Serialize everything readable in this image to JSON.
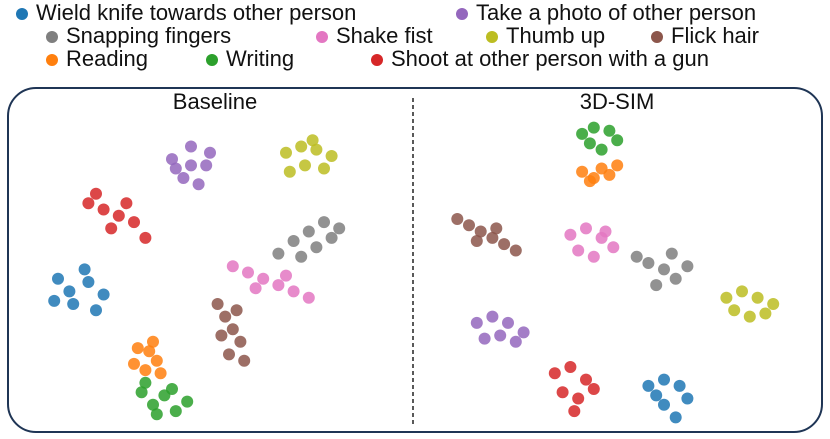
{
  "chart_data": [
    {
      "type": "scatter",
      "title": "Baseline",
      "xlim": [
        0,
        100
      ],
      "ylim": [
        0,
        100
      ],
      "series": [
        {
          "name": "Wield knife towards other person",
          "color": "#1f77b4",
          "x": [
            10,
            14,
            18,
            20,
            13,
            17,
            22,
            9
          ],
          "y": [
            48,
            40,
            47,
            38,
            44,
            51,
            43,
            41
          ]
        },
        {
          "name": "Take a photo of other person",
          "color": "#9467bd",
          "x": [
            40,
            45,
            49,
            43,
            47,
            41,
            50,
            45
          ],
          "y": [
            86,
            90,
            84,
            80,
            78,
            83,
            88,
            84
          ]
        },
        {
          "name": "Snapping fingers",
          "color": "#7f7f7f",
          "x": [
            68,
            72,
            76,
            80,
            84,
            78,
            74,
            82
          ],
          "y": [
            56,
            60,
            63,
            66,
            64,
            58,
            55,
            61
          ]
        },
        {
          "name": "Shake fist",
          "color": "#e377c2",
          "x": [
            56,
            60,
            64,
            68,
            72,
            76,
            62,
            70
          ],
          "y": [
            52,
            50,
            48,
            46,
            44,
            42,
            45,
            49
          ]
        },
        {
          "name": "Thumb up",
          "color": "#bcbd22",
          "x": [
            70,
            74,
            78,
            82,
            75,
            71,
            80,
            77
          ],
          "y": [
            88,
            90,
            89,
            87,
            84,
            82,
            83,
            92
          ]
        },
        {
          "name": "Flick hair",
          "color": "#8c564b",
          "x": [
            52,
            54,
            56,
            58,
            55,
            53,
            57,
            59
          ],
          "y": [
            40,
            36,
            32,
            28,
            24,
            30,
            38,
            22
          ]
        },
        {
          "name": "Reading",
          "color": "#ff7f0e",
          "x": [
            31,
            34,
            36,
            33,
            30,
            35,
            37
          ],
          "y": [
            26,
            25,
            22,
            19,
            21,
            28,
            18
          ]
        },
        {
          "name": "Writing",
          "color": "#2ca02c",
          "x": [
            32,
            35,
            38,
            41,
            44,
            36,
            40,
            33
          ],
          "y": [
            12,
            8,
            11,
            6,
            9,
            5,
            13,
            15
          ]
        },
        {
          "name": "Shoot at other person with a gun",
          "color": "#d62728",
          "x": [
            18,
            22,
            26,
            30,
            24,
            20,
            28,
            33
          ],
          "y": [
            72,
            70,
            68,
            66,
            64,
            75,
            72,
            61
          ]
        }
      ]
    },
    {
      "type": "scatter",
      "title": "3D-SIM",
      "xlim": [
        0,
        100
      ],
      "ylim": [
        0,
        100
      ],
      "series": [
        {
          "color": "#1f77b4",
          "x": [
            56,
            60,
            64,
            66,
            60,
            58,
            63
          ],
          "y": [
            14,
            16,
            14,
            10,
            8,
            11,
            4
          ]
        },
        {
          "color": "#9467bd",
          "x": [
            12,
            16,
            20,
            24,
            18,
            14,
            22
          ],
          "y": [
            34,
            36,
            34,
            31,
            30,
            29,
            28
          ]
        },
        {
          "color": "#7f7f7f",
          "x": [
            53,
            56,
            60,
            63,
            58,
            62,
            66
          ],
          "y": [
            55,
            53,
            51,
            48,
            46,
            56,
            52
          ]
        },
        {
          "color": "#e377c2",
          "x": [
            36,
            40,
            44,
            47,
            38,
            42,
            45
          ],
          "y": [
            62,
            64,
            61,
            58,
            57,
            55,
            63
          ]
        },
        {
          "color": "#bcbd22",
          "x": [
            76,
            80,
            84,
            88,
            78,
            82,
            86
          ],
          "y": [
            42,
            44,
            42,
            40,
            38,
            36,
            37
          ]
        },
        {
          "color": "#8c564b",
          "x": [
            7,
            10,
            13,
            16,
            19,
            22,
            12,
            17
          ],
          "y": [
            67,
            65,
            63,
            61,
            59,
            57,
            60,
            64
          ]
        },
        {
          "color": "#ff7f0e",
          "x": [
            39,
            42,
            46,
            48,
            44,
            41
          ],
          "y": [
            82,
            80,
            81,
            84,
            83,
            79
          ]
        },
        {
          "color": "#2ca02c",
          "x": [
            39,
            42,
            46,
            48,
            41,
            44
          ],
          "y": [
            94,
            96,
            95,
            92,
            91,
            89
          ]
        },
        {
          "color": "#d62728",
          "x": [
            32,
            36,
            40,
            38,
            34,
            42,
            37
          ],
          "y": [
            18,
            20,
            16,
            10,
            12,
            13,
            6
          ]
        }
      ]
    }
  ]
}
